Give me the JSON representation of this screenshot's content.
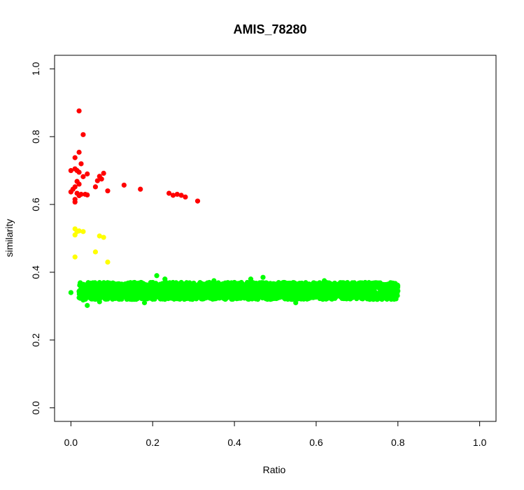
{
  "chart_data": {
    "type": "scatter",
    "title": "AMIS_78280",
    "xlabel": "Ratio",
    "ylabel": "similarity",
    "xlim": [
      -0.04,
      1.04
    ],
    "ylim": [
      -0.04,
      1.04
    ],
    "x_ticks": [
      "0.0",
      "0.2",
      "0.4",
      "0.6",
      "0.8",
      "1.0"
    ],
    "y_ticks": [
      "0.0",
      "0.2",
      "0.4",
      "0.6",
      "0.8",
      "1.0"
    ],
    "grid": false,
    "legend": "none",
    "colors": {
      "red": "#ff0000",
      "yellow": "#ffff00",
      "green": "#00ff00"
    },
    "series": [
      {
        "color": "#ff0000",
        "points": [
          [
            0.02,
            0.876
          ],
          [
            0.03,
            0.806
          ],
          [
            0.02,
            0.754
          ],
          [
            0.01,
            0.738
          ],
          [
            0.025,
            0.72
          ],
          [
            0.0,
            0.7
          ],
          [
            0.01,
            0.705
          ],
          [
            0.015,
            0.7
          ],
          [
            0.02,
            0.695
          ],
          [
            0.04,
            0.69
          ],
          [
            0.03,
            0.682
          ],
          [
            0.08,
            0.692
          ],
          [
            0.07,
            0.683
          ],
          [
            0.075,
            0.675
          ],
          [
            0.065,
            0.67
          ],
          [
            0.015,
            0.668
          ],
          [
            0.02,
            0.66
          ],
          [
            0.06,
            0.652
          ],
          [
            0.01,
            0.652
          ],
          [
            0.005,
            0.645
          ],
          [
            0.13,
            0.657
          ],
          [
            0.09,
            0.64
          ],
          [
            0.17,
            0.645
          ],
          [
            0.0,
            0.637
          ],
          [
            0.015,
            0.633
          ],
          [
            0.025,
            0.63
          ],
          [
            0.035,
            0.63
          ],
          [
            0.04,
            0.628
          ],
          [
            0.02,
            0.626
          ],
          [
            0.01,
            0.615
          ],
          [
            0.01,
            0.607
          ],
          [
            0.24,
            0.633
          ],
          [
            0.25,
            0.627
          ],
          [
            0.26,
            0.63
          ],
          [
            0.27,
            0.627
          ],
          [
            0.28,
            0.622
          ],
          [
            0.31,
            0.61
          ]
        ]
      },
      {
        "color": "#ffff00",
        "points": [
          [
            0.01,
            0.528
          ],
          [
            0.02,
            0.522
          ],
          [
            0.03,
            0.52
          ],
          [
            0.015,
            0.52
          ],
          [
            0.01,
            0.51
          ],
          [
            0.07,
            0.507
          ],
          [
            0.08,
            0.503
          ],
          [
            0.06,
            0.46
          ],
          [
            0.01,
            0.445
          ],
          [
            0.09,
            0.43
          ]
        ]
      },
      {
        "color": "#00ff00",
        "band": {
          "x": [
            0.02,
            0.8
          ],
          "y": [
            0.32,
            0.37
          ]
        },
        "points": [
          [
            0.0,
            0.34
          ],
          [
            0.02,
            0.325
          ],
          [
            0.03,
            0.318
          ],
          [
            0.04,
            0.302
          ],
          [
            0.05,
            0.33
          ],
          [
            0.06,
            0.345
          ],
          [
            0.07,
            0.313
          ],
          [
            0.08,
            0.36
          ],
          [
            0.09,
            0.365
          ],
          [
            0.1,
            0.35
          ],
          [
            0.12,
            0.325
          ],
          [
            0.14,
            0.36
          ],
          [
            0.16,
            0.33
          ],
          [
            0.18,
            0.31
          ],
          [
            0.2,
            0.37
          ],
          [
            0.21,
            0.39
          ],
          [
            0.23,
            0.38
          ],
          [
            0.25,
            0.33
          ],
          [
            0.27,
            0.37
          ],
          [
            0.3,
            0.34
          ],
          [
            0.32,
            0.36
          ],
          [
            0.35,
            0.375
          ],
          [
            0.38,
            0.325
          ],
          [
            0.4,
            0.37
          ],
          [
            0.42,
            0.34
          ],
          [
            0.44,
            0.38
          ],
          [
            0.46,
            0.36
          ],
          [
            0.47,
            0.385
          ],
          [
            0.5,
            0.33
          ],
          [
            0.52,
            0.37
          ],
          [
            0.55,
            0.31
          ],
          [
            0.57,
            0.365
          ],
          [
            0.6,
            0.34
          ],
          [
            0.62,
            0.375
          ],
          [
            0.65,
            0.33
          ],
          [
            0.67,
            0.36
          ],
          [
            0.7,
            0.325
          ],
          [
            0.72,
            0.37
          ],
          [
            0.74,
            0.32
          ],
          [
            0.76,
            0.36
          ],
          [
            0.78,
            0.33
          ],
          [
            0.8,
            0.345
          ]
        ]
      }
    ]
  }
}
